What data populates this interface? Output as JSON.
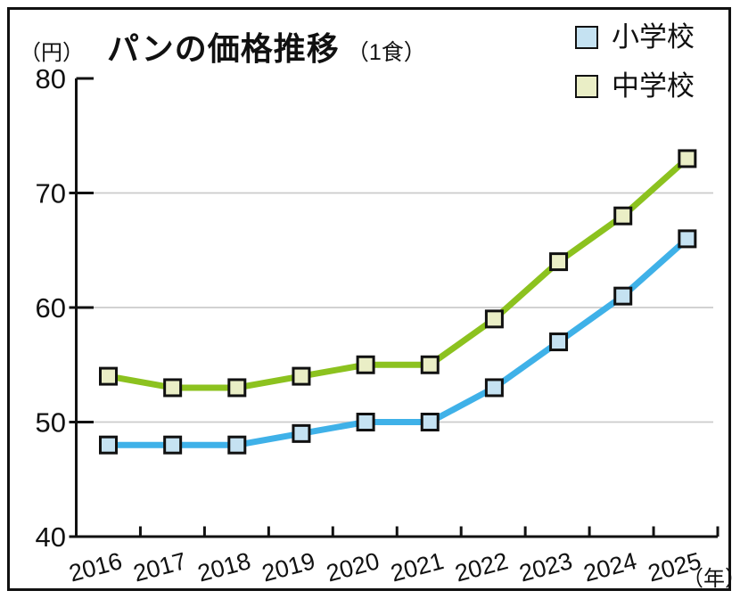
{
  "header": {
    "y_unit_label": "（円）",
    "title": "パンの価格推移",
    "title_suffix": "（1食）"
  },
  "footer": {
    "x_unit_label": "（年）"
  },
  "colors": {
    "axis": "#111111",
    "grid": "#cbcbcb",
    "elementary_line": "#3fb1e8",
    "elementary_marker": "#c5e2f2",
    "junior_high_line": "#8cc21f",
    "junior_high_marker": "#eaeec6"
  },
  "chart_data": {
    "type": "line",
    "title": "パンの価格推移（1食）",
    "categories": [
      "2016",
      "2017",
      "2018",
      "2019",
      "2020",
      "2021",
      "2022",
      "2023",
      "2024",
      "2025"
    ],
    "series": [
      {
        "key": "elementary",
        "name": "小学校",
        "values": [
          48,
          48,
          48,
          49,
          50,
          50,
          53,
          57,
          61,
          66
        ],
        "line_color": "#3fb1e8",
        "marker_fill": "#c5e2f2"
      },
      {
        "key": "junior-high",
        "name": "中学校",
        "values": [
          54,
          53,
          53,
          54,
          55,
          55,
          59,
          64,
          68,
          73
        ],
        "line_color": "#8cc21f",
        "marker_fill": "#eaeec6"
      }
    ],
    "ylim": [
      40,
      80
    ],
    "y_ticks": [
      40,
      50,
      60,
      70,
      80
    ],
    "ylabel": "（円）",
    "xlabel": "（年）",
    "grid": true,
    "legend_position": "top-right",
    "marker": "square"
  }
}
